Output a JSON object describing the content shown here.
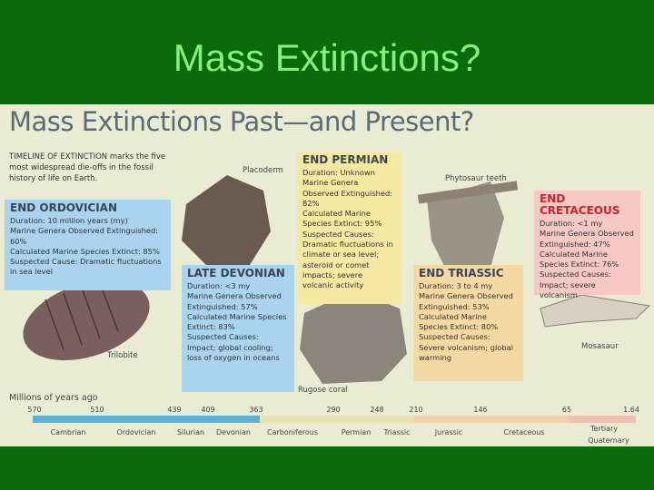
{
  "title": "Mass Extinctions?",
  "infographic": {
    "heading": "Mass Extinctions Past—and Present?",
    "intro": "TIMELINE OF EXTINCTION marks the five most widespread die-offs in the fossil history of life on Earth.",
    "events": [
      {
        "name": "END ORDOVICIAN",
        "lines": [
          "Duration: 10 million years (my)",
          "Marine Genera Observed Extinguished: 60%",
          "Calculated Marine Species Extinct: 85%",
          "Suspected Cause: Dramatic fluctuations in sea level"
        ]
      },
      {
        "name": "LATE DEVONIAN",
        "lines": [
          "Duration: <3 my",
          "Marine Genera Observed Extinguished: 57%",
          "Calculated Marine Species Extinct: 83%",
          "Suspected Causes: Impact; global cooling; loss of oxygen in oceans"
        ]
      },
      {
        "name": "END PERMIAN",
        "lines": [
          "Duration: Unknown",
          "Marine Genera Observed Extinguished: 82%",
          "Calculated Marine Species Extinct: 95%",
          "Suspected Causes: Dramatic fluctuations in climate or sea level; asteroid or comet impacts; severe volcanic activity"
        ]
      },
      {
        "name": "END TRIASSIC",
        "lines": [
          "Duration: 3 to 4 my",
          "Marine Genera Observed Extinguished: 53%",
          "Calculated Marine Species Extinct: 80%",
          "Suspected Causes: Severe volcanism; global warming"
        ]
      },
      {
        "name": "END CRETACEOUS",
        "lines": [
          "Duration: <1 my",
          "Marine Genera Observed Extinguished: 47%",
          "Calculated Marine Species Extinct: 76%",
          "Suspected Causes: Impact; severe volcanism"
        ]
      }
    ],
    "fossils": [
      "Placoderm",
      "Phytosaur teeth",
      "Trilobite",
      "Rugose coral",
      "Mosasaur"
    ],
    "timeline": {
      "label": "Millions of years ago",
      "ticks": [
        570,
        510,
        439,
        409,
        363,
        290,
        248,
        210,
        146,
        65,
        1.64
      ],
      "periods": [
        "Cambrian",
        "Ordovician",
        "Silurian",
        "Devonian",
        "Carboniferous",
        "Permian",
        "Triassic",
        "Jurassic",
        "Cretaceous",
        "Tertiary",
        "Quaternary"
      ]
    }
  }
}
